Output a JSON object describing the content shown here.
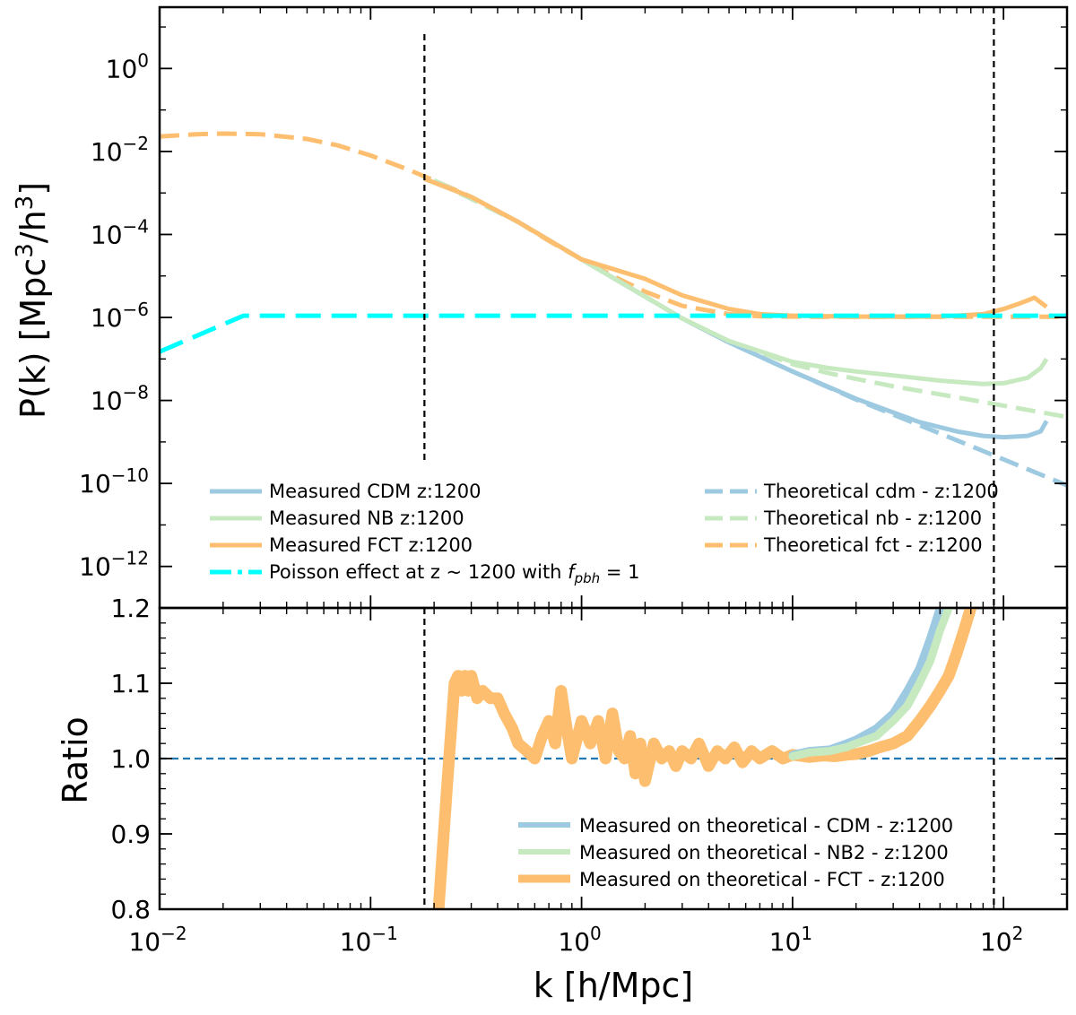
{
  "chart_data": [
    {
      "type": "line",
      "panel": "top",
      "ylabel": "P(k) [Mpc^3/h^3]",
      "x_scale": "log",
      "y_scale": "log",
      "xlim": [
        0.01,
        200
      ],
      "ylim": [
        1e-13,
        30.0
      ],
      "y_ticks": [
        {
          "value": 1,
          "base": "10",
          "exp": "0"
        },
        {
          "value": 0.01,
          "base": "10",
          "exp": "−2"
        },
        {
          "value": 0.0001,
          "base": "10",
          "exp": "−4"
        },
        {
          "value": 1e-06,
          "base": "10",
          "exp": "−6"
        },
        {
          "value": 1e-08,
          "base": "10",
          "exp": "−8"
        },
        {
          "value": 1e-10,
          "base": "10",
          "exp": "−10"
        },
        {
          "value": 1e-12,
          "base": "10",
          "exp": "−12"
        }
      ],
      "vlines": [
        0.18,
        90
      ],
      "colors": {
        "cdm": "#9ecae1",
        "nb": "#c7e9c0",
        "fct": "#fdbf6f",
        "poisson": "#00ffff",
        "ref": "#1f77b4"
      },
      "series": [
        {
          "key": "theo_fct",
          "style": "dashed",
          "color": "#fdbf6f",
          "x": [
            0.01,
            0.015,
            0.02,
            0.03,
            0.05,
            0.07,
            0.1,
            0.15,
            0.2,
            0.3,
            0.5,
            0.7,
            1,
            1.5,
            2,
            3,
            5,
            7,
            10,
            15,
            20,
            30,
            50,
            100,
            200
          ],
          "y": [
            0.023,
            0.026,
            0.027,
            0.026,
            0.02,
            0.014,
            0.008,
            0.0037,
            0.002,
            0.0008,
            0.0002,
            7e-05,
            2.5e-05,
            8.5e-06,
            4.2e-06,
            1.9e-06,
            1.2e-06,
            1.07e-06,
            1.05e-06,
            1.04e-06,
            1.04e-06,
            1.04e-06,
            1.04e-06,
            1.04e-06,
            1.04e-06
          ]
        },
        {
          "key": "theo_cdm",
          "style": "dashed",
          "color": "#9ecae1",
          "x": [
            0.2,
            0.5,
            1,
            2,
            3,
            5,
            10,
            20,
            50,
            100,
            200
          ],
          "y": [
            0.002,
            0.0002,
            2.5e-05,
            3.2e-06,
            9.5e-07,
            2.5e-07,
            5e-08,
            1.05e-08,
            1.6e-09,
            3.8e-10,
            9e-11
          ]
        },
        {
          "key": "theo_nb",
          "style": "dashed",
          "color": "#c7e9c0",
          "x": [
            0.2,
            0.5,
            1,
            2,
            3,
            5,
            10,
            15,
            20,
            30,
            50,
            100,
            200
          ],
          "y": [
            0.002,
            0.0002,
            2.5e-05,
            3.2e-06,
            9.5e-07,
            2.7e-07,
            7.5e-08,
            4.5e-08,
            3.3e-08,
            2.2e-08,
            1.4e-08,
            7.5e-09,
            4e-09
          ]
        },
        {
          "key": "meas_cdm",
          "style": "solid",
          "color": "#9ecae1",
          "x": [
            0.18,
            0.3,
            0.5,
            1,
            2,
            3,
            5,
            10,
            20,
            40,
            60,
            80,
            100,
            130,
            150,
            160
          ],
          "y": [
            0.0022,
            0.0008,
            0.0002,
            2.5e-05,
            3.2e-06,
            9.5e-07,
            2.5e-07,
            5e-08,
            1.1e-08,
            3e-09,
            1.8e-09,
            1.4e-09,
            1.3e-09,
            1.4e-09,
            1.8e-09,
            3.2e-09
          ]
        },
        {
          "key": "meas_nb",
          "style": "solid",
          "color": "#c7e9c0",
          "x": [
            0.18,
            0.3,
            0.5,
            1,
            2,
            3,
            5,
            10,
            15,
            20,
            30,
            50,
            80,
            100,
            130,
            150,
            160
          ],
          "y": [
            0.0022,
            0.0008,
            0.0002,
            2.5e-05,
            3.2e-06,
            9.5e-07,
            2.7e-07,
            8.5e-08,
            6e-08,
            5e-08,
            4e-08,
            3e-08,
            2.5e-08,
            2.6e-08,
            3.5e-08,
            6e-08,
            1e-07
          ]
        },
        {
          "key": "meas_fct",
          "style": "solid",
          "color": "#fdbf6f",
          "x": [
            0.18,
            0.3,
            0.5,
            1,
            2,
            3,
            5,
            7,
            10,
            20,
            50,
            80,
            100,
            120,
            140,
            160
          ],
          "y": [
            0.0022,
            0.0008,
            0.0002,
            2.5e-05,
            8.5e-06,
            3.4e-06,
            1.6e-06,
            1.2e-06,
            1.1e-06,
            1.05e-06,
            1.05e-06,
            1.2e-06,
            1.6e-06,
            2.2e-06,
            3e-06,
            1.8e-06
          ]
        },
        {
          "key": "poisson",
          "style": "dashed",
          "color": "#00ffff",
          "x": [
            0.01,
            0.025,
            200
          ],
          "y": [
            1.5e-07,
            1.1e-06,
            1.1e-06
          ]
        }
      ],
      "legend_left": [
        {
          "key": "meas_cdm",
          "label": "Measured CDM z:1200",
          "style": "solid",
          "color": "#9ecae1"
        },
        {
          "key": "meas_nb",
          "label": "Measured NB z:1200",
          "style": "solid",
          "color": "#c7e9c0"
        },
        {
          "key": "meas_fct",
          "label": "Measured FCT z:1200",
          "style": "solid",
          "color": "#fdbf6f"
        },
        {
          "key": "poisson",
          "label": "Poisson effect at z ~ 1200 with ",
          "label_math": "f",
          "label_sub": "pbh",
          "label_tail": " = 1",
          "style": "dashdot",
          "color": "#00ffff"
        }
      ],
      "legend_right": [
        {
          "key": "theo_cdm",
          "label": "Theoretical cdm - z:1200",
          "style": "dashed",
          "color": "#9ecae1"
        },
        {
          "key": "theo_nb",
          "label": "Theoretical nb - z:1200",
          "style": "dashed",
          "color": "#c7e9c0"
        },
        {
          "key": "theo_fct",
          "label": "Theoretical fct - z:1200",
          "style": "dashed",
          "color": "#fdbf6f"
        }
      ]
    },
    {
      "type": "line",
      "panel": "bottom",
      "xlabel": "k [h/Mpc]",
      "ylabel": "Ratio",
      "x_scale": "log",
      "xlim": [
        0.01,
        200
      ],
      "ylim": [
        0.8,
        1.2
      ],
      "y_ticks": [
        "1.2",
        "1.1",
        "1.0",
        "0.9",
        "0.8"
      ],
      "y_tick_values": [
        1.2,
        1.1,
        1.0,
        0.9,
        0.8
      ],
      "x_ticks": [
        {
          "value": 0.01,
          "base": "10",
          "exp": "−2"
        },
        {
          "value": 0.1,
          "base": "10",
          "exp": "−1"
        },
        {
          "value": 1,
          "base": "10",
          "exp": "0"
        },
        {
          "value": 10,
          "base": "10",
          "exp": "1"
        },
        {
          "value": 100,
          "base": "10",
          "exp": "2"
        }
      ],
      "hline": 1.0,
      "vlines": [
        0.18,
        90
      ],
      "series": [
        {
          "key": "ratio_cdm",
          "color": "#9ecae1",
          "x": [
            10,
            12,
            15,
            18,
            20,
            25,
            30,
            35,
            40,
            45,
            50
          ],
          "y": [
            1.005,
            1.01,
            1.012,
            1.02,
            1.025,
            1.04,
            1.06,
            1.09,
            1.12,
            1.16,
            1.2
          ]
        },
        {
          "key": "ratio_nb",
          "color": "#c7e9c0",
          "x": [
            10,
            12,
            15,
            18,
            20,
            25,
            30,
            35,
            40,
            45,
            50,
            55
          ],
          "y": [
            1.003,
            1.008,
            1.01,
            1.015,
            1.02,
            1.03,
            1.05,
            1.07,
            1.1,
            1.13,
            1.17,
            1.2
          ]
        },
        {
          "key": "ratio_fct",
          "color": "#fdbf6f",
          "x": [
            0.21,
            0.23,
            0.25,
            0.26,
            0.27,
            0.28,
            0.29,
            0.3,
            0.32,
            0.34,
            0.37,
            0.4,
            0.43,
            0.47,
            0.5,
            0.55,
            0.6,
            0.65,
            0.7,
            0.75,
            0.8,
            0.85,
            0.9,
            1.0,
            1.1,
            1.2,
            1.3,
            1.4,
            1.5,
            1.6,
            1.7,
            1.8,
            1.9,
            2.0,
            2.2,
            2.4,
            2.6,
            2.8,
            3.0,
            3.3,
            3.6,
            4.0,
            4.4,
            4.8,
            5.3,
            5.8,
            6.4,
            7.0,
            8.0,
            9.0,
            10,
            12,
            14,
            16,
            18,
            20,
            23,
            26,
            30,
            35,
            40,
            45,
            50,
            55,
            60,
            65,
            70
          ],
          "y": [
            0.8,
            0.96,
            1.1,
            1.11,
            1.09,
            1.11,
            1.09,
            1.11,
            1.08,
            1.09,
            1.08,
            1.08,
            1.06,
            1.04,
            1.02,
            1.01,
            1.0,
            1.03,
            1.05,
            1.02,
            1.09,
            1.04,
            1.0,
            1.05,
            1.02,
            1.05,
            1.0,
            1.06,
            1.01,
            1.0,
            1.03,
            0.98,
            1.02,
            0.97,
            1.02,
            1.0,
            1.01,
            0.99,
            1.01,
            1.0,
            1.02,
            0.99,
            1.01,
            1.0,
            1.015,
            0.995,
            1.01,
            1.0,
            1.01,
            1.0,
            1.005,
            1.002,
            1.004,
            1.003,
            1.005,
            1.006,
            1.01,
            1.015,
            1.02,
            1.03,
            1.05,
            1.07,
            1.09,
            1.11,
            1.14,
            1.17,
            1.2
          ]
        }
      ],
      "legend": [
        {
          "key": "ratio_cdm",
          "label": "Measured on theoretical - CDM - z:1200",
          "color": "#9ecae1"
        },
        {
          "key": "ratio_nb",
          "label": "Measured on theoretical - NB2  - z:1200",
          "color": "#c7e9c0"
        },
        {
          "key": "ratio_fct",
          "label": "Measured on theoretical -  FCT  - z:1200",
          "color": "#fdbf6f"
        }
      ]
    }
  ]
}
